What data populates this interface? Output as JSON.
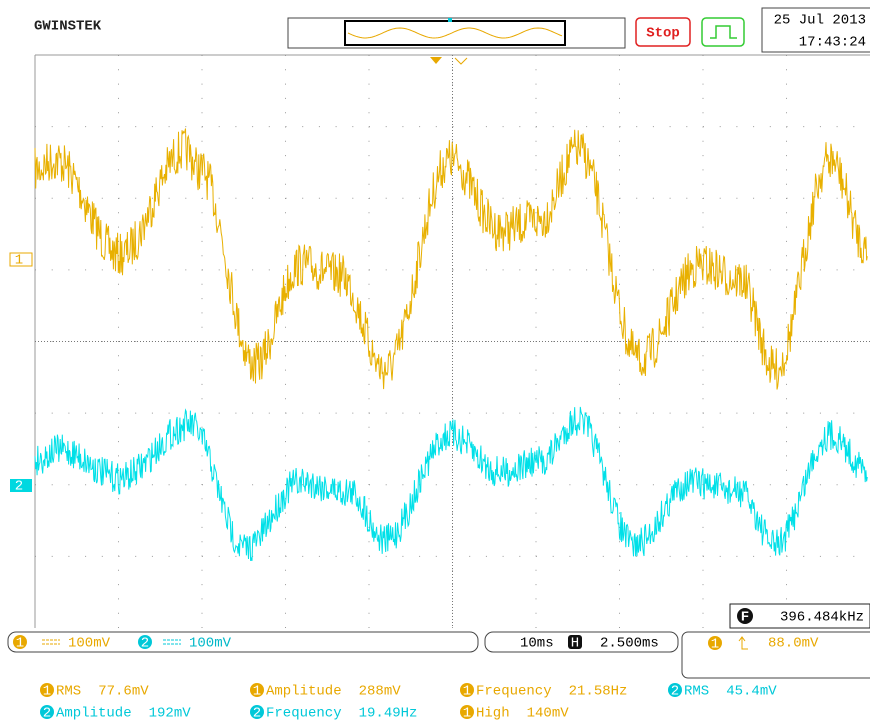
{
  "header": {
    "brand": "GWINSTEK",
    "run_state": "Stop",
    "date": "25 Jul 2013",
    "time": "17:43:24"
  },
  "screen": {
    "channel_markers": [
      "1",
      "2"
    ],
    "frequency_counter": {
      "icon": "F",
      "value": "396.484kHz"
    }
  },
  "status_bar": {
    "ch1": {
      "badge": "1",
      "scale": "100mV"
    },
    "ch2": {
      "badge": "2",
      "scale": "100mV"
    },
    "timebase": {
      "scale": "10ms",
      "icon": "H",
      "position": "2.500ms"
    },
    "trigger": {
      "badge": "1",
      "level": "88.0mV"
    }
  },
  "measurements": [
    {
      "channel": "1",
      "name": "RMS",
      "value": "77.6mV"
    },
    {
      "channel": "1",
      "name": "Amplitude",
      "value": "288mV"
    },
    {
      "channel": "1",
      "name": "Frequency",
      "value": "21.58Hz"
    },
    {
      "channel": "2",
      "name": "RMS",
      "value": "45.4mV"
    },
    {
      "channel": "2",
      "name": "Amplitude",
      "value": "192mV"
    },
    {
      "channel": "2",
      "name": "Frequency",
      "value": "19.49Hz"
    },
    {
      "channel": "1",
      "name": "High",
      "value": "140mV"
    }
  ]
}
